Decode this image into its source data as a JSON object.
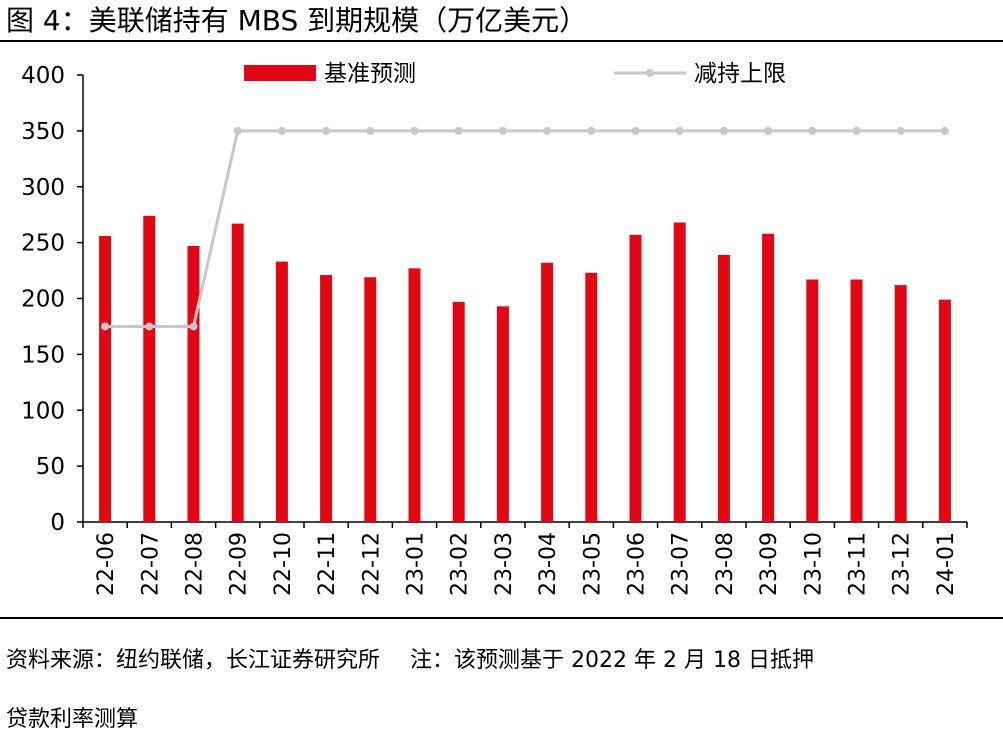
{
  "title": "图 4：美联储持有 MBS 到期规模（万亿美元）",
  "chart_data": {
    "type": "bar+line",
    "categories": [
      "22-06",
      "22-07",
      "22-08",
      "22-09",
      "22-10",
      "22-11",
      "22-12",
      "23-01",
      "23-02",
      "23-03",
      "23-04",
      "23-05",
      "23-06",
      "23-07",
      "23-08",
      "23-09",
      "23-10",
      "23-11",
      "23-12",
      "24-01"
    ],
    "series": [
      {
        "name": "基准预测",
        "type": "bar",
        "color": "#e30613",
        "values": [
          256,
          274,
          247,
          267,
          233,
          221,
          219,
          227,
          197,
          193,
          232,
          223,
          257,
          268,
          239,
          258,
          217,
          217,
          212,
          199
        ]
      },
      {
        "name": "减持上限",
        "type": "line",
        "color": "#c8c8c8",
        "values": [
          175,
          175,
          175,
          350,
          350,
          350,
          350,
          350,
          350,
          350,
          350,
          350,
          350,
          350,
          350,
          350,
          350,
          350,
          350,
          350
        ]
      }
    ],
    "ylim": [
      0,
      400
    ],
    "yticks": [
      0,
      50,
      100,
      150,
      200,
      250,
      300,
      350,
      400
    ],
    "grid": false,
    "legend": "top"
  },
  "footer": {
    "source": "资料来源：纽约联储，长江证券研究所",
    "note": "注：该预测基于 2022 年 2 月 18 日抵押",
    "method": "贷款利率测算"
  }
}
